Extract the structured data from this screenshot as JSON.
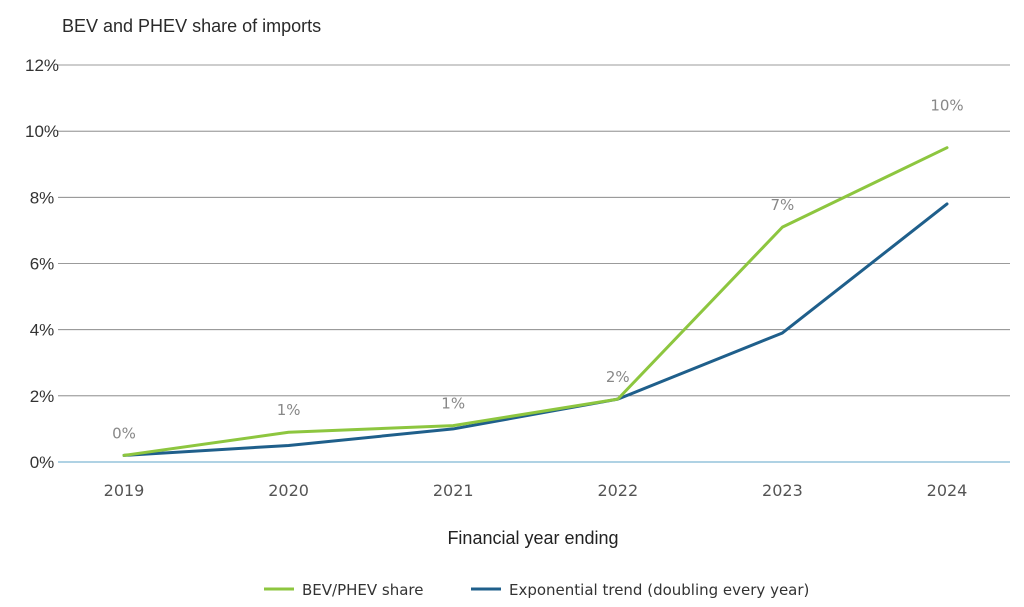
{
  "chart_data": {
    "type": "line",
    "title": "BEV and PHEV share of imports",
    "xlabel": "Financial year ending",
    "ylabel": "",
    "categories": [
      "2019",
      "2020",
      "2021",
      "2022",
      "2023",
      "2024"
    ],
    "ylim": [
      0,
      12
    ],
    "yticks": [
      {
        "value": 0,
        "label": "0%"
      },
      {
        "value": 2,
        "label": "2%"
      },
      {
        "value": 4,
        "label": "4%"
      },
      {
        "value": 6,
        "label": "6%"
      },
      {
        "value": 8,
        "label": "8%"
      },
      {
        "value": 10,
        "label": "10%"
      },
      {
        "value": 12,
        "label": "12%"
      }
    ],
    "grid": true,
    "legend_position": "bottom",
    "series": [
      {
        "name": "BEV/PHEV share",
        "color": "#8dc63f",
        "values": [
          0.2,
          0.9,
          1.1,
          1.9,
          7.1,
          9.5
        ],
        "data_labels": [
          "0%",
          "1%",
          "1%",
          "2%",
          "7%",
          "10%"
        ]
      },
      {
        "name": "Exponential trend (doubling every year)",
        "color": "#1f5f8b",
        "values": [
          0.2,
          0.5,
          1.0,
          1.9,
          3.9,
          7.8
        ]
      }
    ],
    "gridline_color": "#7a7a7a",
    "baseline_color": "#7fb8d4"
  }
}
